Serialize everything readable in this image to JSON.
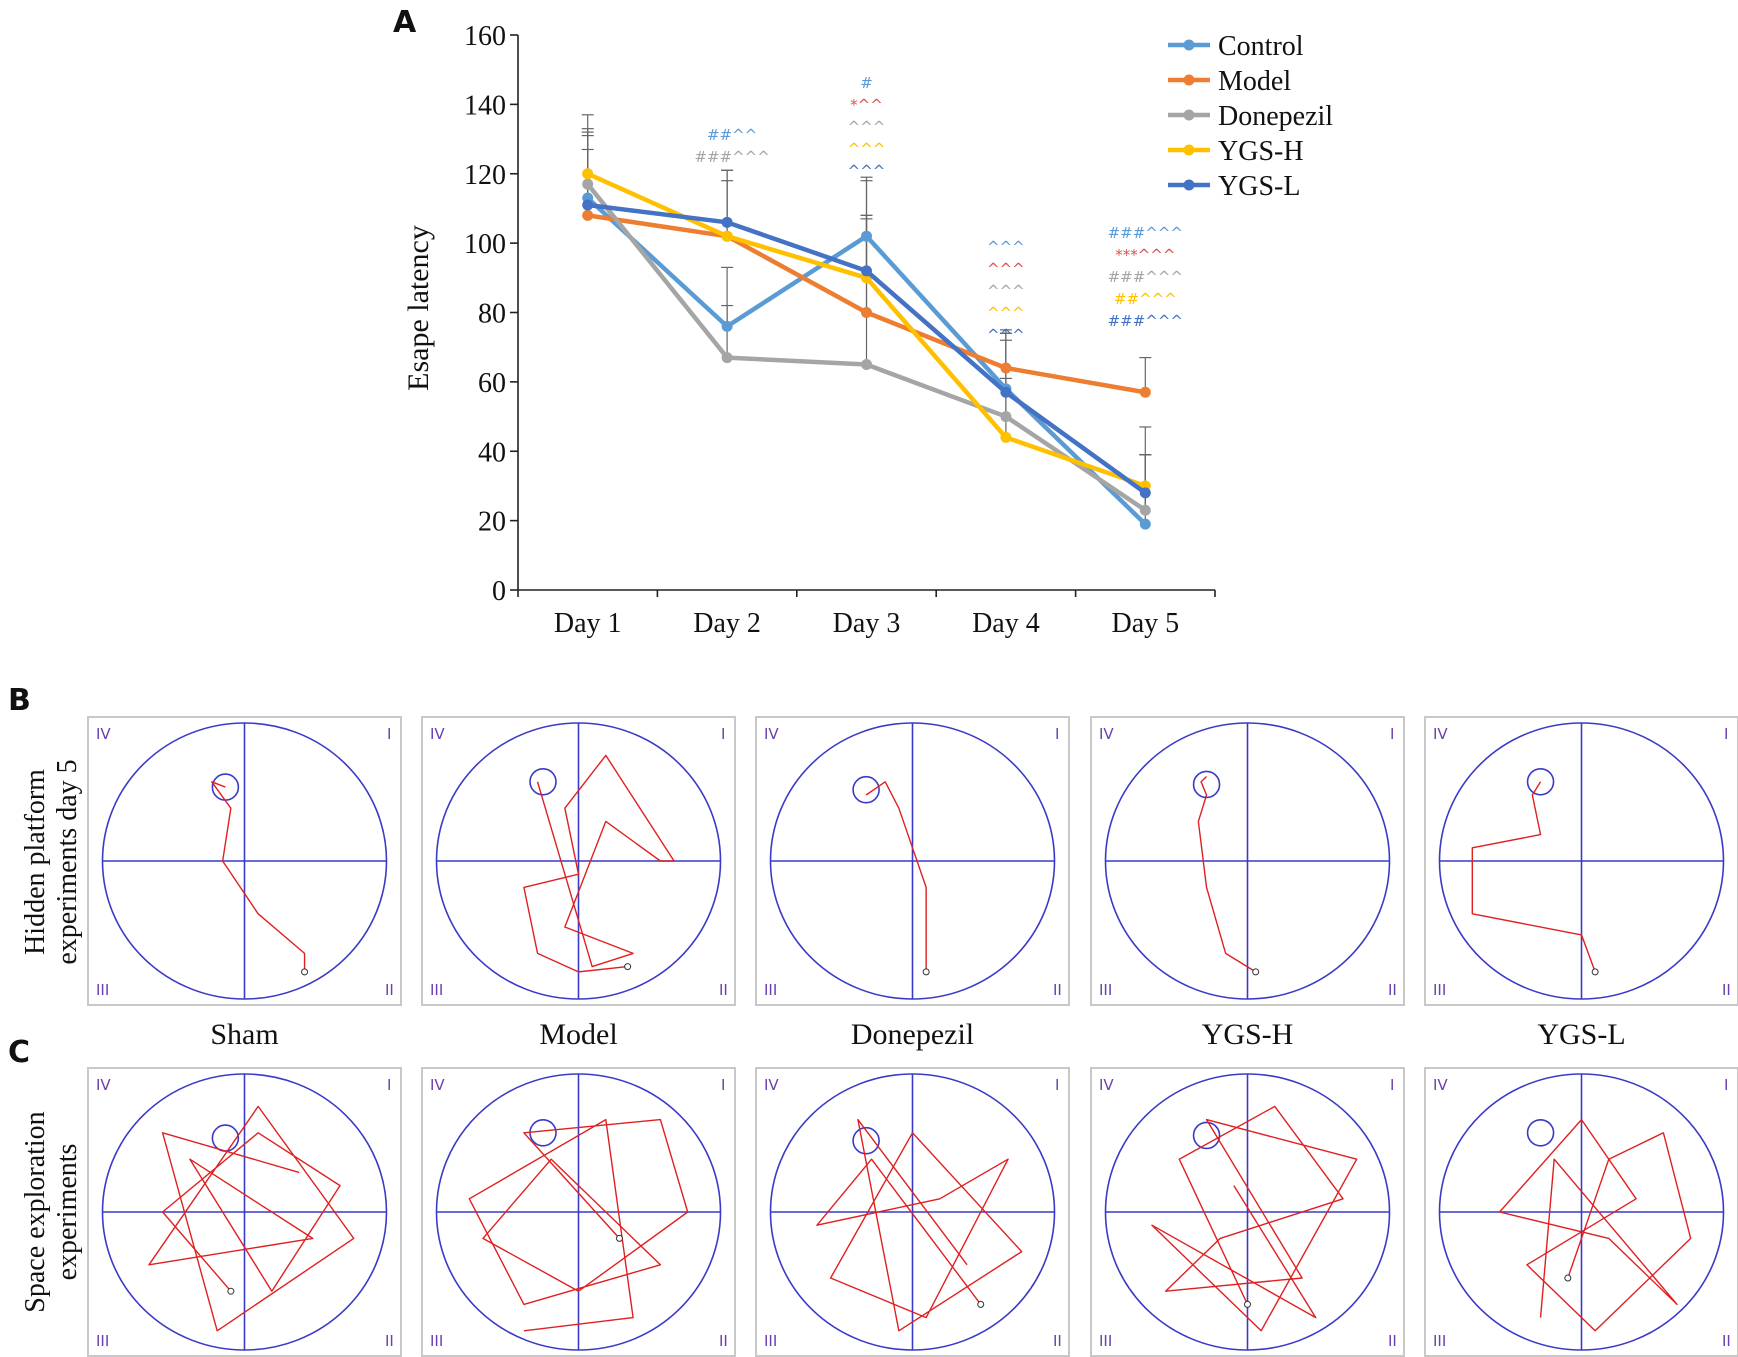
{
  "panels": {
    "a": "A",
    "b": "B",
    "c": "C"
  },
  "chart_data": {
    "type": "line",
    "ylabel": "Esape latency",
    "xlabel": "",
    "ylim": [
      0,
      160
    ],
    "yticks": [
      "0",
      "20",
      "40",
      "60",
      "80",
      "100",
      "120",
      "140",
      "160"
    ],
    "categories": [
      "Day 1",
      "Day 2",
      "Day 3",
      "Day 4",
      "Day 5"
    ],
    "legend_position": "top-right",
    "series": [
      {
        "name": "Control",
        "color": "#5b9bd5",
        "values": [
          113,
          76,
          102,
          58,
          19
        ],
        "errors": [
          18,
          17,
          17,
          16,
          20
        ]
      },
      {
        "name": "Model",
        "color": "#ed7d31",
        "values": [
          108,
          102,
          80,
          64,
          57
        ],
        "errors": [
          19,
          19,
          27,
          11,
          10
        ]
      },
      {
        "name": "Donepezil",
        "color": "#a5a5a5",
        "values": [
          117,
          67,
          65,
          50,
          23
        ],
        "errors": [
          16,
          15,
          43,
          22,
          16
        ]
      },
      {
        "name": "YGS-H",
        "color": "#ffc000",
        "values": [
          120,
          102,
          90,
          44,
          30
        ],
        "errors": [
          12,
          16,
          28,
          17,
          9
        ]
      },
      {
        "name": "YGS-L",
        "color": "#4472c4",
        "values": [
          111,
          106,
          92,
          57,
          28
        ],
        "errors": [
          26,
          15,
          16,
          17,
          19
        ]
      }
    ],
    "annotations": [
      {
        "day": "Day 2",
        "lines": [
          {
            "text": "##^^",
            "color": "#5b9bd5"
          },
          {
            "text": "###^^^",
            "color": "#a5a5a5"
          }
        ]
      },
      {
        "day": "Day 3",
        "lines": [
          {
            "text": "#",
            "color": "#5b9bd5"
          },
          {
            "text": "*^^",
            "color": "#e05050"
          },
          {
            "text": "^^^",
            "color": "#a5a5a5"
          },
          {
            "text": "^^^",
            "color": "#ffc000"
          },
          {
            "text": "^^^",
            "color": "#4472c4"
          }
        ]
      },
      {
        "day": "Day 4",
        "lines": [
          {
            "text": "^^^",
            "color": "#5b9bd5"
          },
          {
            "text": "^^^",
            "color": "#e05050"
          },
          {
            "text": "^^^",
            "color": "#a5a5a5"
          },
          {
            "text": "^^^",
            "color": "#ffc000"
          },
          {
            "text": "^^^",
            "color": "#4472c4"
          }
        ]
      },
      {
        "day": "Day 5",
        "lines": [
          {
            "text": "###^^^",
            "color": "#5b9bd5"
          },
          {
            "text": "***^^^",
            "color": "#e05050"
          },
          {
            "text": "###^^^",
            "color": "#a5a5a5"
          },
          {
            "text": "##^^^",
            "color": "#ffc000"
          },
          {
            "text": "###^^^",
            "color": "#4472c4"
          }
        ]
      }
    ]
  },
  "maze": {
    "row_b_label": [
      "Hidden platform",
      "experiments day 5"
    ],
    "row_c_label": [
      "Space exploration",
      "experiments"
    ],
    "groups": [
      "Sham",
      "Model",
      "Donepezil",
      "YGS-H",
      "YGS-L"
    ],
    "quadrants": {
      "q1": "I",
      "q2": "II",
      "q3": "III",
      "q4": "IV"
    },
    "pool_color": "#3a3ac8",
    "path_color": "#e02020",
    "hidden_paths": [
      [
        [
          0.72,
          0.92
        ],
        [
          0.72,
          0.85
        ],
        [
          0.55,
          0.7
        ],
        [
          0.42,
          0.5
        ],
        [
          0.45,
          0.3
        ],
        [
          0.38,
          0.2
        ],
        [
          0.43,
          0.22
        ]
      ],
      [
        [
          0.68,
          0.9
        ],
        [
          0.5,
          0.92
        ],
        [
          0.35,
          0.85
        ],
        [
          0.3,
          0.6
        ],
        [
          0.5,
          0.55
        ],
        [
          0.45,
          0.3
        ],
        [
          0.6,
          0.1
        ],
        [
          0.85,
          0.5
        ],
        [
          0.8,
          0.5
        ],
        [
          0.6,
          0.35
        ],
        [
          0.45,
          0.75
        ],
        [
          0.7,
          0.85
        ],
        [
          0.55,
          0.9
        ],
        [
          0.35,
          0.2
        ]
      ],
      [
        [
          0.55,
          0.92
        ],
        [
          0.55,
          0.6
        ],
        [
          0.5,
          0.45
        ],
        [
          0.45,
          0.3
        ],
        [
          0.4,
          0.2
        ],
        [
          0.33,
          0.25
        ]
      ],
      [
        [
          0.53,
          0.92
        ],
        [
          0.42,
          0.85
        ],
        [
          0.35,
          0.6
        ],
        [
          0.32,
          0.35
        ],
        [
          0.35,
          0.25
        ],
        [
          0.33,
          0.2
        ],
        [
          0.35,
          0.18
        ]
      ],
      [
        [
          0.55,
          0.92
        ],
        [
          0.5,
          0.78
        ],
        [
          0.1,
          0.7
        ],
        [
          0.1,
          0.45
        ],
        [
          0.35,
          0.4
        ],
        [
          0.32,
          0.25
        ],
        [
          0.35,
          0.2
        ]
      ]
    ],
    "probe_paths": [
      [
        [
          0.45,
          0.8
        ],
        [
          0.2,
          0.5
        ],
        [
          0.55,
          0.2
        ],
        [
          0.85,
          0.4
        ],
        [
          0.6,
          0.8
        ],
        [
          0.3,
          0.3
        ],
        [
          0.75,
          0.6
        ],
        [
          0.15,
          0.7
        ],
        [
          0.55,
          0.1
        ],
        [
          0.9,
          0.6
        ],
        [
          0.4,
          0.95
        ],
        [
          0.2,
          0.2
        ],
        [
          0.7,
          0.35
        ]
      ],
      [
        [
          0.65,
          0.6
        ],
        [
          0.3,
          0.2
        ],
        [
          0.8,
          0.15
        ],
        [
          0.9,
          0.5
        ],
        [
          0.5,
          0.8
        ],
        [
          0.15,
          0.6
        ],
        [
          0.4,
          0.3
        ],
        [
          0.8,
          0.7
        ],
        [
          0.3,
          0.85
        ],
        [
          0.1,
          0.45
        ],
        [
          0.6,
          0.15
        ],
        [
          0.7,
          0.9
        ],
        [
          0.3,
          0.95
        ]
      ],
      [
        [
          0.75,
          0.85
        ],
        [
          0.35,
          0.3
        ],
        [
          0.15,
          0.55
        ],
        [
          0.6,
          0.45
        ],
        [
          0.85,
          0.3
        ],
        [
          0.55,
          0.9
        ],
        [
          0.2,
          0.75
        ],
        [
          0.5,
          0.2
        ],
        [
          0.9,
          0.65
        ],
        [
          0.45,
          0.95
        ],
        [
          0.3,
          0.15
        ],
        [
          0.7,
          0.7
        ]
      ],
      [
        [
          0.5,
          0.85
        ],
        [
          0.25,
          0.3
        ],
        [
          0.6,
          0.1
        ],
        [
          0.85,
          0.45
        ],
        [
          0.4,
          0.6
        ],
        [
          0.2,
          0.8
        ],
        [
          0.7,
          0.75
        ],
        [
          0.35,
          0.15
        ],
        [
          0.9,
          0.3
        ],
        [
          0.55,
          0.95
        ],
        [
          0.15,
          0.55
        ],
        [
          0.75,
          0.9
        ],
        [
          0.45,
          0.4
        ]
      ],
      [
        [
          0.45,
          0.75
        ],
        [
          0.6,
          0.3
        ],
        [
          0.8,
          0.2
        ],
        [
          0.9,
          0.6
        ],
        [
          0.55,
          0.95
        ],
        [
          0.3,
          0.7
        ],
        [
          0.7,
          0.45
        ],
        [
          0.5,
          0.15
        ],
        [
          0.2,
          0.5
        ],
        [
          0.6,
          0.6
        ],
        [
          0.85,
          0.85
        ],
        [
          0.4,
          0.3
        ],
        [
          0.35,
          0.9
        ]
      ]
    ]
  }
}
